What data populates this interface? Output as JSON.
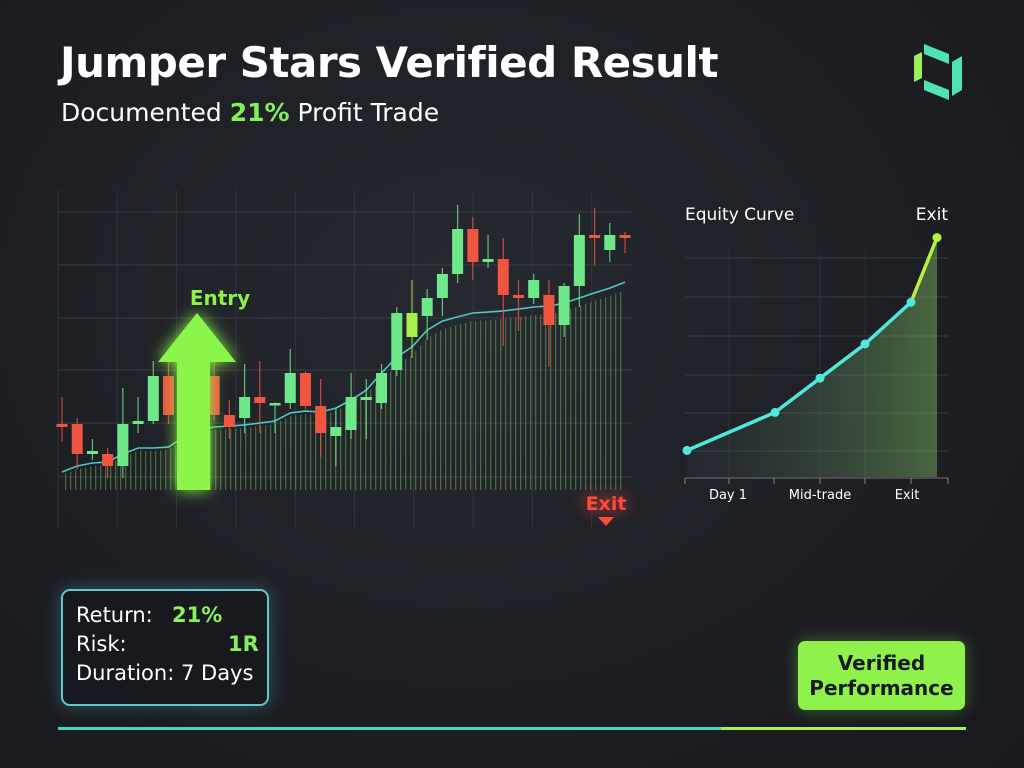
{
  "header": {
    "title": "Jumper Stars Verified Result",
    "subtitle_prefix": "Documented ",
    "subtitle_highlight": "21%",
    "subtitle_suffix": " Profit Trade"
  },
  "logo": {
    "icon": "hexagon-segments-logo",
    "colors": [
      "#4fe3b4",
      "#9ef05a"
    ]
  },
  "colors": {
    "bullish": "#6fe88a",
    "bearish": "#f0553f",
    "accent_lime": "#8ef24a",
    "accent_teal": "#4fe3d4",
    "background": "#1d1f25"
  },
  "chart_data": [
    {
      "type": "candlestick",
      "title": "",
      "grid": true,
      "annotations": {
        "entry": "Entry",
        "exit": "Exit"
      },
      "entry_marker": {
        "icon": "arrow-up-icon",
        "candle_index": 10
      },
      "exit_marker": {
        "icon": "triangle-down-icon",
        "candle_index": 36
      },
      "ylim": [
        0,
        100
      ],
      "candles": [
        {
          "o": 22,
          "h": 31,
          "l": 16,
          "c": 21
        },
        {
          "o": 22,
          "h": 24,
          "l": 7,
          "c": 12
        },
        {
          "o": 12,
          "h": 17,
          "l": 10,
          "c": 13
        },
        {
          "o": 12,
          "h": 14,
          "l": 4,
          "c": 8
        },
        {
          "o": 8,
          "h": 34,
          "l": 4,
          "c": 22
        },
        {
          "o": 22,
          "h": 31,
          "l": 19,
          "c": 23
        },
        {
          "o": 23,
          "h": 43,
          "l": 22,
          "c": 38
        },
        {
          "o": 38,
          "h": 43,
          "l": 22,
          "c": 25
        },
        {
          "o": 25,
          "h": 40,
          "l": 24,
          "c": 29
        },
        {
          "o": 38,
          "h": 39,
          "l": 37,
          "c": 37.5
        },
        {
          "o": 38,
          "h": 50,
          "l": 23,
          "c": 25
        },
        {
          "o": 25,
          "h": 30,
          "l": 17,
          "c": 21
        },
        {
          "o": 24,
          "h": 42,
          "l": 19,
          "c": 31
        },
        {
          "o": 31,
          "h": 43,
          "l": 19,
          "c": 29
        },
        {
          "o": 28.6,
          "h": 29.2,
          "l": 19,
          "c": 29
        },
        {
          "o": 29,
          "h": 47,
          "l": 27,
          "c": 39
        },
        {
          "o": 39,
          "h": 39.5,
          "l": 27,
          "c": 28
        },
        {
          "o": 28,
          "h": 37,
          "l": 11,
          "c": 19
        },
        {
          "o": 18,
          "h": 27,
          "l": 8,
          "c": 21
        },
        {
          "o": 20,
          "h": 39,
          "l": 17,
          "c": 31
        },
        {
          "o": 30,
          "h": 37,
          "l": 17,
          "c": 31
        },
        {
          "o": 29,
          "h": 42,
          "l": 27,
          "c": 39
        },
        {
          "o": 40,
          "h": 61,
          "l": 38,
          "c": 59
        },
        {
          "o": 51,
          "h": 70,
          "l": 44,
          "c": 59
        },
        {
          "o": 58,
          "h": 67,
          "l": 50,
          "c": 64
        },
        {
          "o": 64,
          "h": 74,
          "l": 58,
          "c": 72
        },
        {
          "o": 72,
          "h": 95,
          "l": 69,
          "c": 87
        },
        {
          "o": 87,
          "h": 91,
          "l": 70,
          "c": 76
        },
        {
          "o": 76,
          "h": 85,
          "l": 74,
          "c": 77
        },
        {
          "o": 77,
          "h": 84,
          "l": 48,
          "c": 65
        },
        {
          "o": 65,
          "h": 70,
          "l": 53,
          "c": 64
        },
        {
          "o": 64,
          "h": 72,
          "l": 62,
          "c": 70
        },
        {
          "o": 65,
          "h": 70,
          "l": 41,
          "c": 55
        },
        {
          "o": 55,
          "h": 69,
          "l": 51,
          "c": 68
        },
        {
          "o": 68,
          "h": 92,
          "l": 61,
          "c": 85
        },
        {
          "o": 85,
          "h": 94,
          "l": 75,
          "c": 84
        },
        {
          "o": 80,
          "h": 89,
          "l": 76,
          "c": 85
        },
        {
          "o": 85,
          "h": 86,
          "l": 79,
          "c": 84
        }
      ],
      "moving_average": [
        6,
        8,
        9,
        9.3,
        12,
        14,
        14,
        14.3,
        17.7,
        20,
        21,
        21.3,
        21.7,
        22.3,
        23,
        25.7,
        26.3,
        26,
        27.3,
        30,
        33.3,
        39,
        44.3,
        47.7,
        53.3,
        56.3,
        57.7,
        59,
        59.3,
        59.7,
        60.3,
        61,
        61.3,
        62.3,
        64,
        65.7,
        67.3,
        69.3
      ]
    },
    {
      "type": "line",
      "title": "Equity Curve",
      "end_label": "Exit",
      "grid": true,
      "x_tick_labels": [
        "Day 1",
        "Mid-trade",
        "Exit"
      ],
      "ylim": [
        0,
        6.5
      ],
      "points": [
        0.7,
        1.7,
        2.6,
        3.5,
        4.6,
        6.3
      ],
      "line_color": "#4fe8dc",
      "final_segment_color": "#b8f043"
    }
  ],
  "stats": {
    "return_label": "Return:",
    "return_value": "21%",
    "risk_label": "Risk:",
    "risk_value": "1R",
    "duration_label": "Duration:",
    "duration_value": "7 Days"
  },
  "badge": {
    "line1": "Verified",
    "line2": "Performance"
  },
  "progress": {
    "teal_fraction": 0.73
  }
}
